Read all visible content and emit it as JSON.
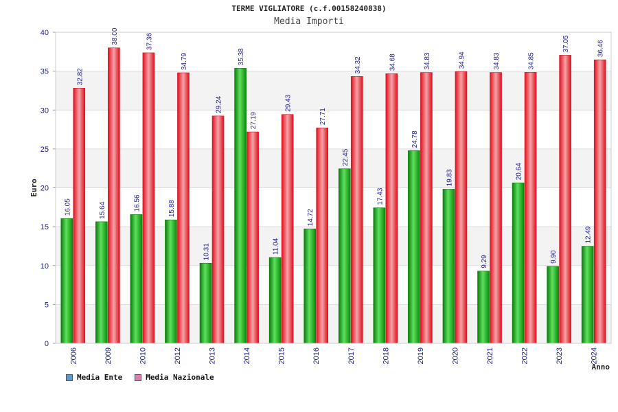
{
  "chart_data": {
    "type": "bar",
    "title": "TERME VIGLIATORE (c.f.00158240838)",
    "subtitle": "Media Importi",
    "xlabel": "Anno",
    "ylabel": "Euro",
    "ylim": [
      0,
      40
    ],
    "yticks": [
      "0",
      "5",
      "10",
      "15",
      "20",
      "25",
      "30",
      "35",
      "40"
    ],
    "categories": [
      "2006",
      "2009",
      "2010",
      "2012",
      "2013",
      "2014",
      "2015",
      "2016",
      "2017",
      "2018",
      "2019",
      "2020",
      "2021",
      "2022",
      "2023",
      "2024"
    ],
    "series": [
      {
        "name": "Media Ente",
        "legend_color": "#5b9bd5",
        "bar_color": "#1aa01a",
        "values": [
          16.05,
          15.64,
          16.56,
          15.88,
          10.31,
          35.38,
          11.04,
          14.72,
          22.45,
          17.43,
          24.78,
          19.83,
          9.29,
          20.64,
          9.9,
          12.49
        ],
        "labels": [
          "16.05",
          "15.64",
          "16.56",
          "15.88",
          "10.31",
          "35.38",
          "11.04",
          "14.72",
          "22.45",
          "17.43",
          "24.78",
          "19.83",
          "9.29",
          "20.64",
          "9.90",
          "12.49"
        ]
      },
      {
        "name": "Media Nazionale",
        "legend_color": "#e07ab0",
        "bar_color": "#e0202a",
        "values": [
          32.82,
          38.0,
          37.36,
          34.79,
          29.24,
          27.19,
          29.43,
          27.71,
          34.32,
          34.68,
          34.83,
          34.94,
          34.83,
          34.85,
          37.05,
          36.46
        ],
        "labels": [
          "32.82",
          "38.00",
          "37.36",
          "34.79",
          "29.24",
          "27.19",
          "29.43",
          "27.71",
          "34.32",
          "34.68",
          "34.83",
          "34.94",
          "34.83",
          "34.85",
          "37.05",
          "36.46"
        ]
      }
    ],
    "grid": true,
    "legend_position": "bottom-left"
  }
}
